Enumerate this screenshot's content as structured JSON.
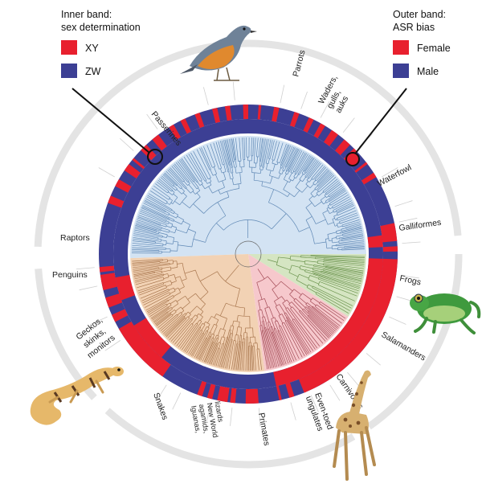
{
  "legend_inner": {
    "title_line1": "Inner band:",
    "title_line2": "sex determination",
    "items": [
      {
        "label": "XY",
        "color": "#e8202e"
      },
      {
        "label": "ZW",
        "color": "#3c3f94"
      }
    ]
  },
  "legend_outer": {
    "title_line1": "Outer band:",
    "title_line2": "ASR bias",
    "items": [
      {
        "label": "Female",
        "color": "#e8202e"
      },
      {
        "label": "Male",
        "color": "#3c3f94"
      }
    ]
  },
  "clade_labels": {
    "passerines": "Passerines",
    "parrots": "Parrots",
    "waders_1": "Waders,",
    "waders_2": "gulls,",
    "waders_3": "auks",
    "waterfowl": "Waterfowl",
    "galliformes": "Galliformes",
    "raptors": "Raptors",
    "penguins": "Penguins",
    "frogs": "Frogs",
    "salamanders": "Salamanders",
    "geckos_1": "Geckos,",
    "geckos_2": "skinks,",
    "geckos_3": "monitors",
    "carnivores": "Carnivores",
    "even_toed_1": "Even-toed",
    "even_toed_2": "ungulates",
    "snakes": "Snakes",
    "iguanas_1": "Iguanas,",
    "iguanas_2": "agamids,",
    "iguanas_3": "New World",
    "iguanas_4": "lizards",
    "primates": "Primates"
  },
  "colors": {
    "female_xy": "#e8202e",
    "male_zw": "#3c3f94",
    "birds_sector": "#d3e3f3",
    "squamates_sector": "#f2d2b4",
    "mammals_sector": "#f6c8cc",
    "amphibians_sector": "#d5e5c2",
    "tree_birds": "#5f88b5",
    "tree_squamates": "#a9774f",
    "tree_mammals": "#a34b56",
    "tree_amphibians": "#6d9550",
    "outer_arc": "#e4e4e4"
  },
  "icons": [
    "bird-icon",
    "frog-icon",
    "gecko-icon",
    "giraffe-icon"
  ]
}
